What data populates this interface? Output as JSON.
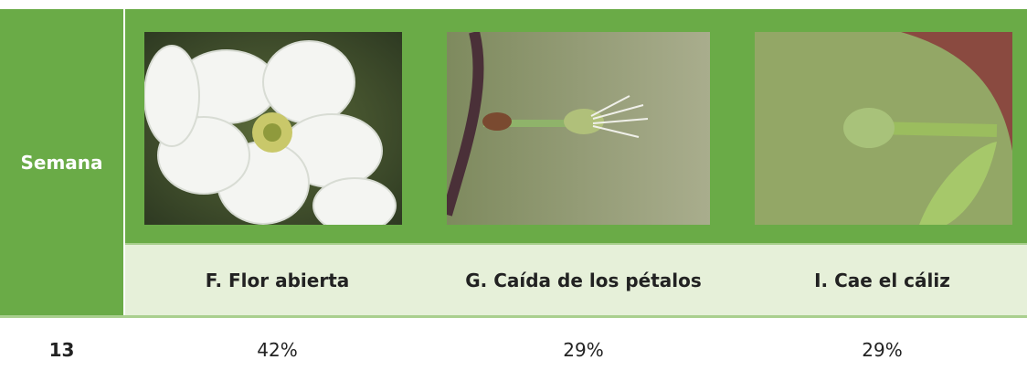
{
  "header": {
    "first": "Semana",
    "stages": [
      "F. Flor abierta",
      "G. Caída de los pétalos",
      "I. Cae el cáliz"
    ]
  },
  "table": {
    "rows": [
      [
        "13",
        "42%",
        "29%",
        "29%"
      ]
    ]
  }
}
